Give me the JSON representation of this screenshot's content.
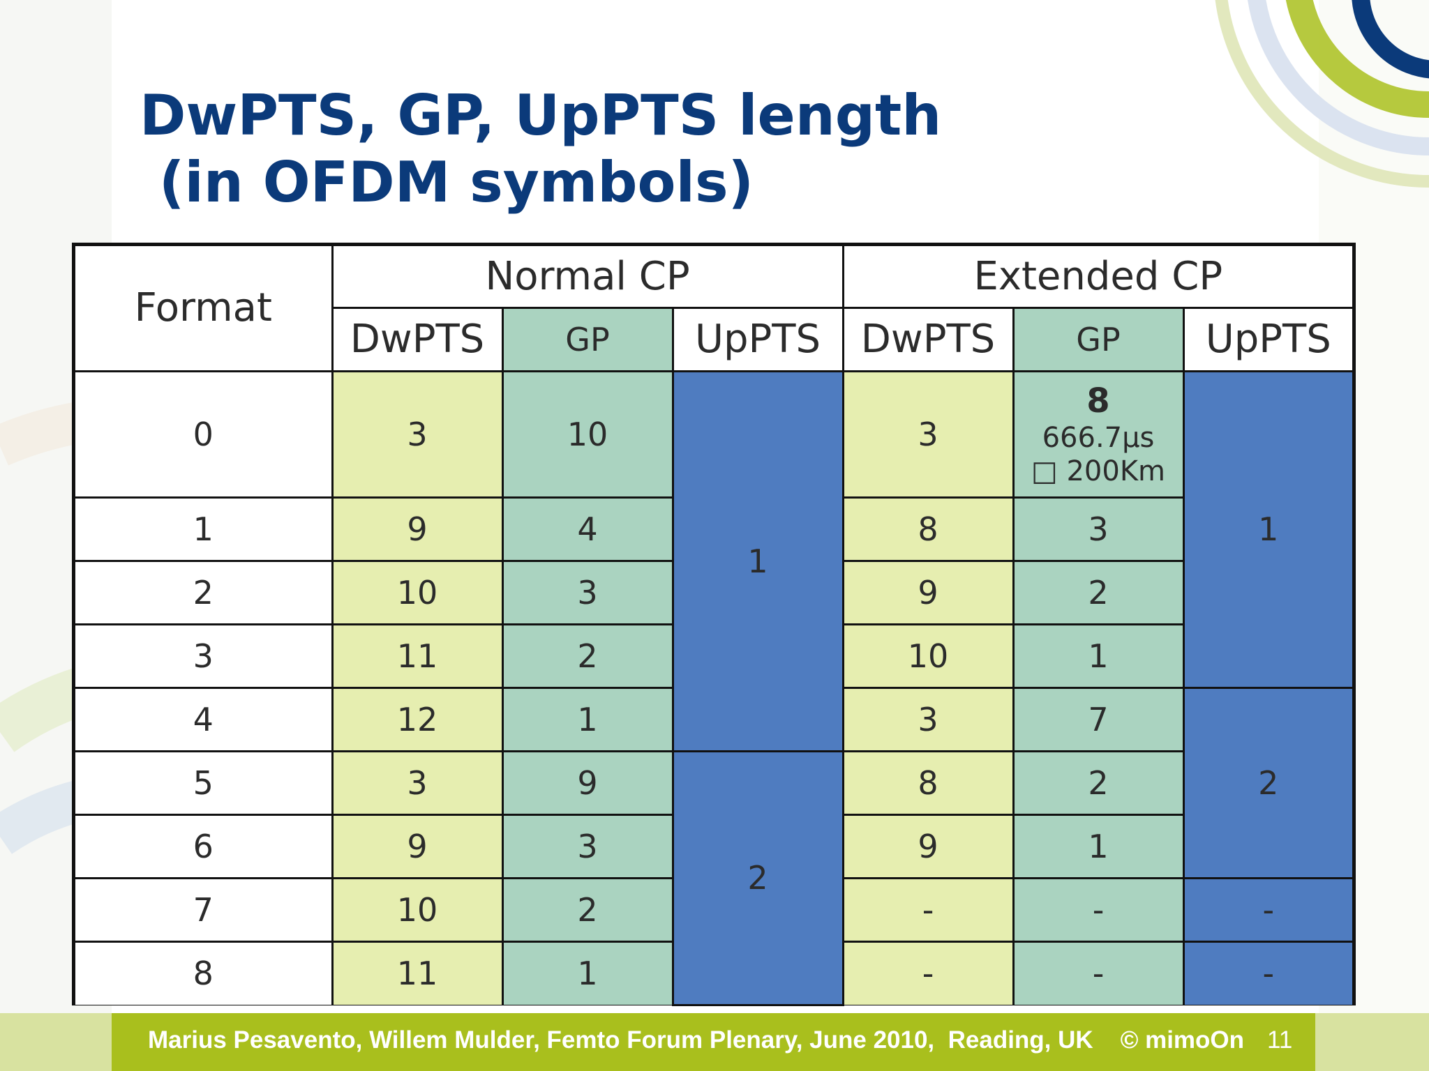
{
  "slide": {
    "title_line1": "DwPTS, GP, UpPTS length",
    "title_line2": " (in OFDM symbols)"
  },
  "table": {
    "format_header": "Format",
    "group_headers": [
      "Normal CP",
      "Extended CP"
    ],
    "sub_headers": [
      "DwPTS",
      "GP",
      "UpPTS",
      "DwPTS",
      "GP",
      "UpPTS"
    ],
    "formats": [
      "0",
      "1",
      "2",
      "3",
      "4",
      "5",
      "6",
      "7",
      "8"
    ],
    "normal_dwpts": [
      "3",
      "9",
      "10",
      "11",
      "12",
      "3",
      "9",
      "10",
      "11"
    ],
    "normal_gp": [
      "10",
      "4",
      "3",
      "2",
      "1",
      "9",
      "3",
      "2",
      "1"
    ],
    "normal_uppts_groups": [
      "1",
      "2"
    ],
    "extended_dwpts": [
      "3",
      "8",
      "9",
      "10",
      "3",
      "8",
      "9",
      "-",
      "-"
    ],
    "extended_gp": [
      "8",
      "3",
      "2",
      "1",
      "7",
      "2",
      "1",
      "-",
      "-"
    ],
    "extended_gp0_duration": "666.7µs",
    "extended_gp0_distance": "□ 200Km",
    "extended_uppts_groups": [
      "1",
      "2",
      "-",
      "-"
    ]
  },
  "footer": {
    "text": "Marius Pesavento, Willem Mulder, Femto Forum Plenary, June 2010,  Reading, UK    © mimoOn",
    "page_number": "11"
  },
  "colors": {
    "title": "#0b3a7a",
    "dwpts": "#e6eeb0",
    "gp": "#aad3c0",
    "uppts": "#4f7cc0",
    "footer": "#a9bf1d"
  }
}
